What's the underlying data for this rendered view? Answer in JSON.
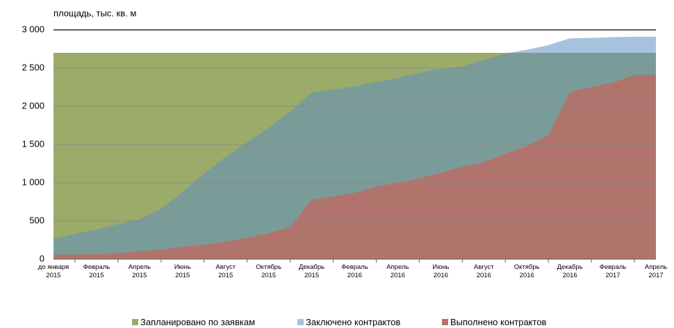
{
  "chart_data": {
    "type": "area",
    "y_axis_label": "площадь, тыс. кв. м",
    "categories": [
      "до января\n2015",
      null,
      "Февраль\n2015",
      null,
      "Апрель\n2015",
      null,
      "Июнь\n2015",
      null,
      "Август\n2015",
      null,
      "Октябрь\n2015",
      null,
      "Декабрь\n2015",
      null,
      "Февраль\n2016",
      null,
      "Апрель\n2016",
      null,
      "Июнь\n2016",
      null,
      "Август\n2016",
      null,
      "Октябрь\n2016",
      null,
      "Декабрь\n2016",
      null,
      "Февраль\n2017",
      null,
      "Апрель\n2017"
    ],
    "series": [
      {
        "name": "Запланировано по заявкам",
        "color": "#9bab6a",
        "values": [
          2700,
          2700,
          2700,
          2700,
          2700,
          2700,
          2700,
          2700,
          2700,
          2700,
          2700,
          2700,
          2700,
          2700,
          2700,
          2700,
          2700,
          2700,
          2700,
          2700,
          2700,
          2700,
          2700,
          2700,
          2700,
          2700,
          2700,
          2700,
          2700
        ]
      },
      {
        "name": "Заключено контрактов",
        "color": "#5f8fbf",
        "values": [
          270,
          330,
          390,
          460,
          520,
          660,
          880,
          1120,
          1340,
          1530,
          1720,
          1930,
          2180,
          2220,
          2260,
          2320,
          2370,
          2440,
          2490,
          2520,
          2610,
          2690,
          2740,
          2800,
          2890,
          2895,
          2905,
          2910,
          2910
        ]
      },
      {
        "name": "Выполнено контрактов",
        "color": "#b0746c",
        "values": [
          60,
          60,
          65,
          80,
          105,
          125,
          160,
          190,
          230,
          280,
          340,
          420,
          780,
          820,
          870,
          950,
          1000,
          1060,
          1130,
          1210,
          1270,
          1380,
          1480,
          1620,
          2190,
          2250,
          2310,
          2410,
          2410
        ]
      }
    ],
    "ylim": [
      0,
      3000
    ],
    "yticks": [
      0,
      500,
      {
        "value": 1000,
        "label": "1 000"
      },
      {
        "value": 1500,
        "label": "1 500"
      },
      {
        "value": 2000,
        "label": "2 000"
      },
      {
        "value": 2500,
        "label": "2 500"
      },
      {
        "value": 3000,
        "label": "3 000"
      }
    ],
    "grid": true,
    "legend": "bottom"
  }
}
